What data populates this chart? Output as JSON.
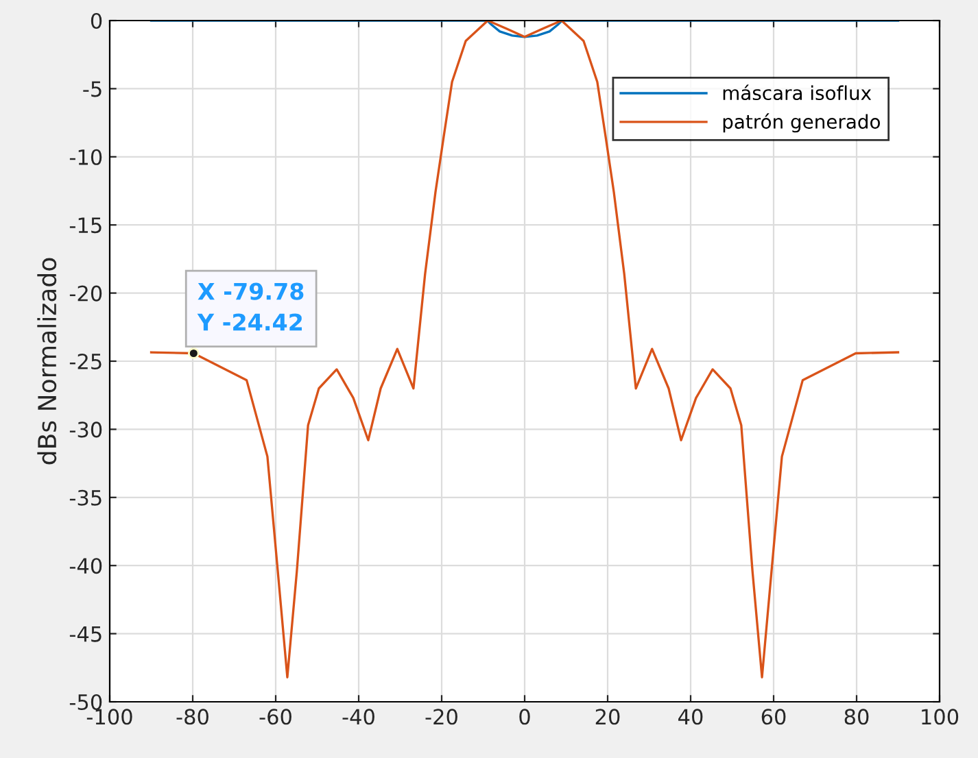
{
  "chart_data": {
    "type": "line",
    "ylabel": "dBs Normalizado",
    "xlim": [
      -100,
      100
    ],
    "ylim": [
      -50,
      0
    ],
    "xticks": [
      -100,
      -80,
      -60,
      -40,
      -20,
      0,
      20,
      40,
      60,
      80,
      100
    ],
    "yticks": [
      -50,
      -45,
      -40,
      -35,
      -30,
      -25,
      -20,
      -15,
      -10,
      -5,
      0
    ],
    "grid": true,
    "legend": "top right",
    "series": [
      {
        "name": "máscara isoflux",
        "color": "#0072bd",
        "x": [
          -90,
          -9,
          -8,
          -6,
          -3,
          0,
          3,
          6,
          8,
          9,
          90
        ],
        "values": [
          0,
          0,
          -0.3,
          -0.8,
          -1.1,
          -1.2,
          -1.1,
          -0.8,
          -0.3,
          0,
          0
        ]
      },
      {
        "name": "patrón generado",
        "color": "#d95319",
        "x": [
          -90,
          -79.78,
          -67,
          -62,
          -59.5,
          -57.2,
          -54.9,
          -52.2,
          -49.6,
          -45.3,
          -41.3,
          -37.7,
          -34.7,
          -30.7,
          -26.8,
          -24,
          -21.5,
          -19.5,
          -17.5,
          -14.2,
          -8.9,
          -4.3,
          0,
          4.3,
          8.9,
          14.2,
          17.5,
          19.5,
          21.5,
          24,
          26.8,
          30.7,
          34.7,
          37.7,
          41.3,
          45.3,
          49.6,
          52.2,
          54.9,
          57.2,
          59.5,
          62,
          67,
          79.78,
          90
        ],
        "values": [
          -24.35,
          -24.42,
          -26.4,
          -32,
          -40.4,
          -48.2,
          -40.4,
          -29.7,
          -27,
          -25.6,
          -27.7,
          -30.8,
          -27,
          -24.1,
          -27,
          -18.6,
          -12.6,
          -8.5,
          -4.5,
          -1.5,
          0,
          -0.6,
          -1.2,
          -0.6,
          0,
          -1.5,
          -4.5,
          -8.5,
          -12.6,
          -18.6,
          -27,
          -24.1,
          -27,
          -30.8,
          -27.7,
          -25.6,
          -27,
          -29.7,
          -40.4,
          -48.2,
          -40.4,
          -32,
          -26.4,
          -24.42,
          -24.35
        ]
      }
    ],
    "annotations": [
      {
        "text": "X -79.78\nY -24.42",
        "x": -79.78,
        "y": -24.42
      }
    ]
  }
}
